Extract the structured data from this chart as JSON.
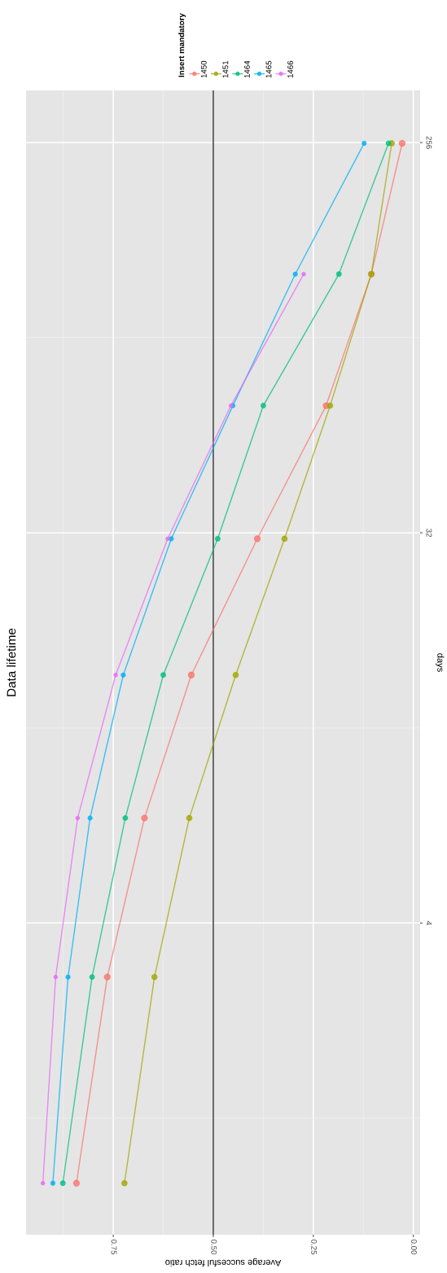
{
  "chart_data": {
    "type": "line",
    "title": "Data lifetime",
    "xlabel": "Average succesful fetch ratio",
    "ylabel": "days",
    "legend_title": "Insert mandatory",
    "series": [
      {
        "name": "1450",
        "color": "#f8766d",
        "x": [
          0.842,
          0.765,
          0.672,
          0.555,
          0.39,
          0.218,
          0.105,
          0.028
        ],
        "values": [
          1,
          3,
          7,
          15,
          31,
          63,
          127,
          255
        ]
      },
      {
        "name": "1451",
        "color": "#a3a500",
        "x": [
          0.722,
          0.647,
          0.56,
          0.444,
          0.322,
          0.208,
          0.105,
          0.054
        ],
        "values": [
          1,
          3,
          7,
          15,
          31,
          63,
          127,
          255
        ]
      },
      {
        "name": "1464",
        "color": "#00bf7d",
        "x": [
          0.876,
          0.803,
          0.72,
          0.625,
          0.489,
          0.375,
          0.186,
          0.062
        ],
        "values": [
          1,
          3,
          7,
          15,
          31,
          63,
          127,
          255
        ]
      },
      {
        "name": "1465",
        "color": "#00b0f6",
        "x": [
          0.901,
          0.863,
          0.808,
          0.725,
          0.605,
          0.451,
          0.295,
          0.123
        ],
        "values": [
          1,
          3,
          7,
          15,
          31,
          63,
          127,
          255
        ]
      },
      {
        "name": "1466",
        "color": "#e76bf3",
        "x": [
          0.926,
          0.894,
          0.839,
          0.744,
          0.614,
          0.456,
          0.274
        ],
        "values": [
          1,
          3,
          7,
          15,
          31,
          63,
          127
        ]
      }
    ],
    "log": "y",
    "ylim": [
      0.76,
      338
    ],
    "yticks": [
      4,
      32,
      256
    ],
    "xlim": [
      0.968,
      -0.017
    ],
    "xticks": [
      {
        "value": 0,
        "label": "0.00"
      },
      {
        "value": 0.25,
        "label": "0.25"
      },
      {
        "value": 0.5,
        "label": "0.50"
      },
      {
        "value": 0.75,
        "label": "0.75"
      }
    ],
    "ref_lines": [
      {
        "axis": "x",
        "value": 0.5,
        "color": "#4d4d4d"
      }
    ],
    "grid": true,
    "legend": "top",
    "marker": "circle",
    "line_style": "solid"
  }
}
